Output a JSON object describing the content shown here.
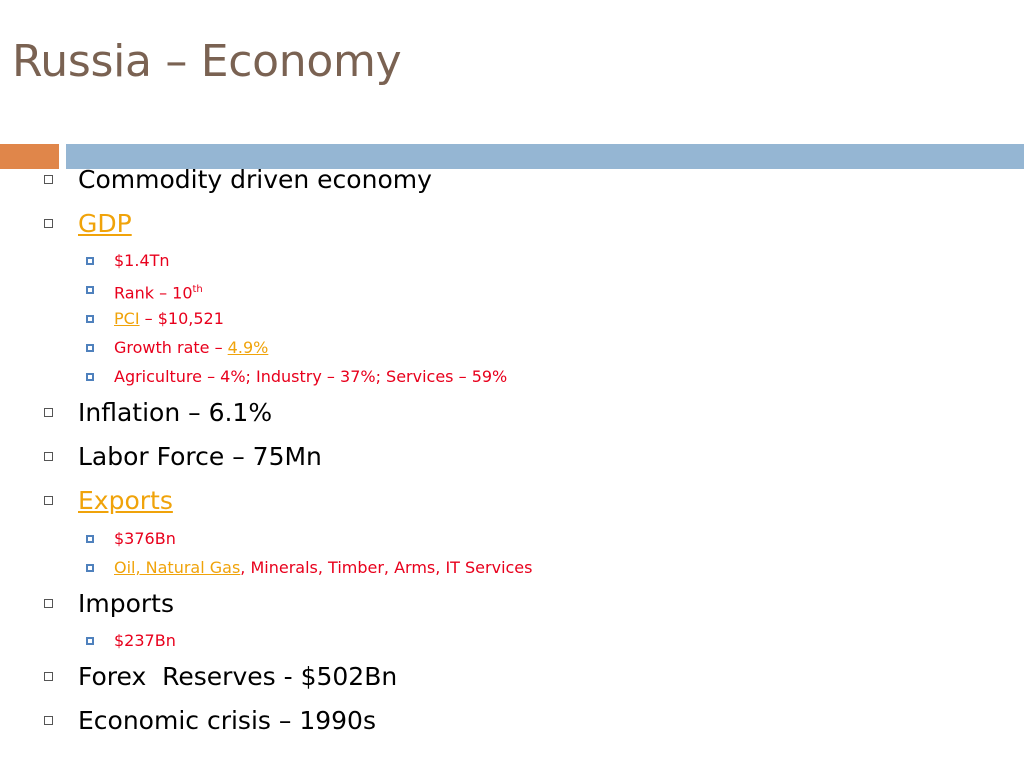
{
  "slide": {
    "title": "Russia – Economy"
  },
  "colors": {
    "title": "#7a6252",
    "orange_bar": "#e0864a",
    "blue_bar": "#95b6d3",
    "main_text": "#000000",
    "sub_text": "#e8001c",
    "link": "#f0a30a",
    "sub_bullet": "#4f81bd"
  },
  "items": [
    {
      "text": "Commodity driven economy"
    },
    {
      "text": "GDP",
      "sub": [
        {
          "text": "$1.4Tn"
        },
        {
          "pre": "Rank – 10",
          "sup": "th"
        },
        {
          "link": "PCI",
          "post": " – $10,521"
        },
        {
          "pre": "Growth rate – ",
          "link": "4.9%"
        },
        {
          "text": "Agriculture – 4%; Industry – 37%; Services – 59%"
        }
      ]
    },
    {
      "text": "Inflation – 6.1%"
    },
    {
      "text": "Labor Force – 75Mn"
    },
    {
      "text": "Exports",
      "sub": [
        {
          "text": "$376Bn"
        },
        {
          "link": "Oil, Natural Gas",
          "post": ", Minerals, Timber, Arms, IT Services"
        }
      ]
    },
    {
      "text": "Imports",
      "sub": [
        {
          "text": "$237Bn"
        }
      ]
    },
    {
      "text": "Forex  Reserves - $502Bn"
    },
    {
      "text": "Economic crisis – 1990s"
    }
  ]
}
